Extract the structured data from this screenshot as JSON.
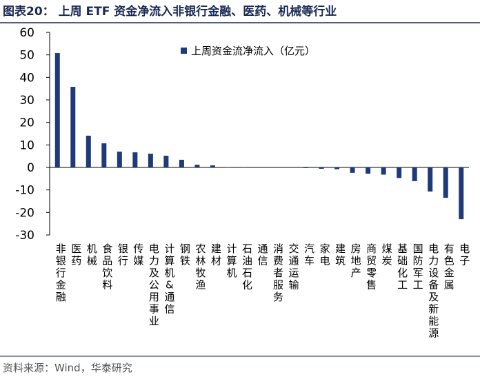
{
  "chart_data": {
    "type": "bar",
    "title": "图表20： 上周 ETF 资金净流入非银行金融、医药、机械等行业",
    "legend_label": "上周资金流净流入（亿元）",
    "source": "资料来源：Wind，华泰研究",
    "color": "#1f3a78",
    "categories": [
      "非银行金融",
      "医药",
      "机械",
      "食品饮料",
      "银行",
      "传媒",
      "电力及公用事业",
      "计算机&通信",
      "钢铁",
      "农林牧渔",
      "建材",
      "计算机",
      "石油石化",
      "通信",
      "消费者服务",
      "交通运输",
      "汽车",
      "家电",
      "建筑",
      "房地产",
      "商贸零售",
      "煤炭",
      "基础化工",
      "国防军工",
      "电力设备及新能源",
      "有色金属",
      "电子"
    ],
    "values": [
      50.8,
      35.8,
      14.1,
      10.7,
      7.0,
      6.7,
      6.1,
      5.2,
      3.4,
      1.2,
      0.9,
      0.1,
      0.05,
      0,
      0,
      0,
      -0.3,
      -0.6,
      -0.8,
      -2.4,
      -2.8,
      -3.2,
      -4.7,
      -6.1,
      -10.7,
      -13.5,
      -23.0
    ],
    "ylim": [
      -30,
      60
    ],
    "yticks": [
      -30,
      -20,
      -10,
      0,
      10,
      20,
      30,
      40,
      50,
      60
    ]
  }
}
